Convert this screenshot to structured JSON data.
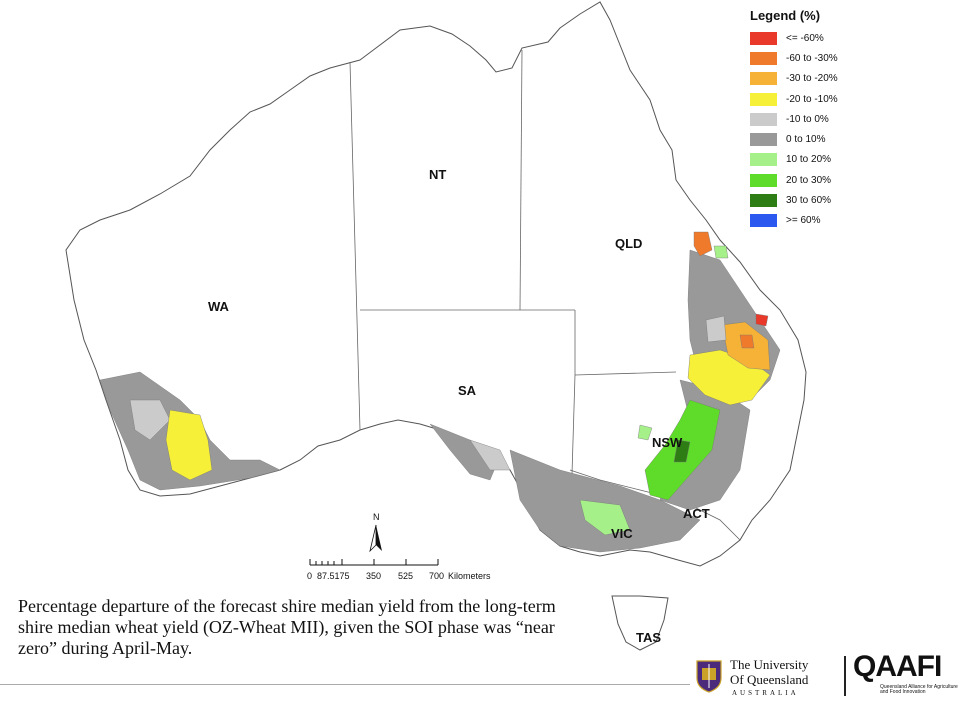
{
  "states": [
    "WA",
    "NT",
    "SA",
    "QLD",
    "NSW",
    "ACT",
    "VIC",
    "TAS"
  ],
  "legend": {
    "title": "Legend (%)",
    "items": [
      {
        "label": "<= -60%",
        "color": "#e8392a"
      },
      {
        "label": "-60 to -30%",
        "color": "#f07a2c"
      },
      {
        "label": "-30 to -20%",
        "color": "#f5b236"
      },
      {
        "label": "-20 to -10%",
        "color": "#f7f038"
      },
      {
        "label": "-10 to 0%",
        "color": "#cbcbcb"
      },
      {
        "label": "0 to 10%",
        "color": "#999999"
      },
      {
        "label": "10 to 20%",
        "color": "#a6f08a"
      },
      {
        "label": "20 to 30%",
        "color": "#5fdc2a"
      },
      {
        "label": "30 to 60%",
        "color": "#2e7d14"
      },
      {
        "label": ">= 60%",
        "color": "#2b59f0"
      }
    ]
  },
  "scale": {
    "ticks": [
      "0",
      "87.5175",
      "350",
      "525",
      "700"
    ],
    "unit": "Kilometers"
  },
  "north_label": "N",
  "caption": "Percentage departure of the forecast shire median yield from the long-term shire median wheat yield (OZ-Wheat MII), given the SOI phase was “near zero” during April-May.",
  "logos": {
    "uq_line1": "The University",
    "uq_line2": "Of Queensland",
    "uq_line3": "AUSTRALIA",
    "qaafi": "QAAFI",
    "qaafi_sub": "Queensland Alliance for Agriculture and Food Innovation"
  }
}
